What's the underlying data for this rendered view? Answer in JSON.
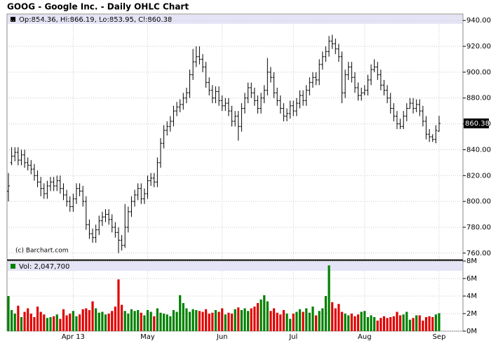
{
  "chart_data": {
    "type": "ohlc",
    "title": "GOOG - Google Inc. - Daily OHLC Chart",
    "credit": "(c) Barchart.com",
    "price_legend": "Op:854.36, Hi:866.19, Lo:853.95, Cl:860.38",
    "volume_legend": "Vol: 2,047,700",
    "categories": [
      null,
      null,
      null,
      null,
      null,
      null,
      null,
      null,
      null,
      null,
      null,
      null,
      null,
      null,
      null,
      null,
      null,
      null,
      null,
      null,
      "Apr 13",
      null,
      null,
      null,
      null,
      null,
      null,
      null,
      null,
      null,
      null,
      null,
      null,
      null,
      null,
      null,
      null,
      null,
      null,
      null,
      null,
      null,
      null,
      "May",
      null,
      null,
      null,
      null,
      null,
      null,
      null,
      null,
      null,
      null,
      null,
      null,
      null,
      null,
      null,
      null,
      null,
      null,
      null,
      null,
      null,
      null,
      "Jun",
      null,
      null,
      null,
      null,
      null,
      null,
      null,
      null,
      null,
      null,
      null,
      null,
      null,
      null,
      null,
      null,
      null,
      null,
      null,
      null,
      null,
      "Jul",
      null,
      null,
      null,
      null,
      null,
      null,
      null,
      null,
      null,
      null,
      null,
      null,
      null,
      null,
      null,
      null,
      null,
      null,
      null,
      null,
      null,
      "Aug",
      null,
      null,
      null,
      null,
      null,
      null,
      null,
      null,
      null,
      null,
      null,
      null,
      null,
      null,
      null,
      null,
      null,
      null,
      null,
      null,
      null,
      null,
      "Sep"
    ],
    "ohlc": [
      [
        808,
        822,
        800,
        812
      ],
      [
        830,
        842,
        828,
        835
      ],
      [
        835,
        842,
        831,
        838
      ],
      [
        838,
        842,
        828,
        832
      ],
      [
        832,
        840,
        828,
        836
      ],
      [
        836,
        840,
        826,
        830
      ],
      [
        830,
        834,
        824,
        828
      ],
      [
        828,
        832,
        821,
        825
      ],
      [
        825,
        829,
        816,
        820
      ],
      [
        820,
        824,
        811,
        815
      ],
      [
        815,
        819,
        804,
        810
      ],
      [
        810,
        814,
        802,
        806
      ],
      [
        806,
        816,
        802,
        812
      ],
      [
        812,
        819,
        808,
        815
      ],
      [
        815,
        819,
        808,
        812
      ],
      [
        812,
        820,
        808,
        816
      ],
      [
        816,
        820,
        806,
        810
      ],
      [
        810,
        814,
        801,
        805
      ],
      [
        805,
        809,
        796,
        800
      ],
      [
        800,
        804,
        792,
        796
      ],
      [
        796,
        806,
        792,
        802
      ],
      [
        802,
        814,
        798,
        810
      ],
      [
        810,
        814,
        804,
        808
      ],
      [
        808,
        812,
        796,
        800
      ],
      [
        800,
        804,
        778,
        782
      ],
      [
        782,
        786,
        771,
        775
      ],
      [
        775,
        779,
        768,
        772
      ],
      [
        772,
        782,
        768,
        778
      ],
      [
        778,
        789,
        774,
        785
      ],
      [
        785,
        792,
        781,
        788
      ],
      [
        788,
        794,
        784,
        790
      ],
      [
        790,
        794,
        782,
        786
      ],
      [
        786,
        790,
        776,
        780
      ],
      [
        780,
        784,
        772,
        776
      ],
      [
        776,
        780,
        760,
        770
      ],
      [
        770,
        774,
        762,
        766
      ],
      [
        766,
        798,
        764,
        780
      ],
      [
        780,
        796,
        776,
        792
      ],
      [
        792,
        804,
        788,
        800
      ],
      [
        800,
        809,
        796,
        805
      ],
      [
        805,
        814,
        801,
        810
      ],
      [
        810,
        814,
        798,
        802
      ],
      [
        802,
        810,
        798,
        806
      ],
      [
        806,
        820,
        802,
        816
      ],
      [
        816,
        822,
        812,
        818
      ],
      [
        818,
        822,
        811,
        815
      ],
      [
        815,
        834,
        811,
        830
      ],
      [
        830,
        849,
        826,
        845
      ],
      [
        845,
        859,
        841,
        855
      ],
      [
        855,
        862,
        851,
        858
      ],
      [
        858,
        866,
        854,
        862
      ],
      [
        862,
        874,
        858,
        870
      ],
      [
        870,
        877,
        866,
        873
      ],
      [
        873,
        879,
        869,
        875
      ],
      [
        875,
        884,
        871,
        880
      ],
      [
        880,
        888,
        876,
        884
      ],
      [
        884,
        902,
        880,
        898
      ],
      [
        898,
        918,
        894,
        908
      ],
      [
        908,
        920,
        904,
        912
      ],
      [
        912,
        920,
        906,
        910
      ],
      [
        910,
        914,
        900,
        904
      ],
      [
        904,
        908,
        888,
        892
      ],
      [
        892,
        896,
        882,
        886
      ],
      [
        886,
        890,
        876,
        880
      ],
      [
        880,
        889,
        876,
        885
      ],
      [
        885,
        889,
        874,
        878
      ],
      [
        878,
        882,
        870,
        874
      ],
      [
        874,
        880,
        870,
        876
      ],
      [
        876,
        880,
        866,
        870
      ],
      [
        870,
        874,
        858,
        862
      ],
      [
        862,
        870,
        858,
        866
      ],
      [
        866,
        870,
        847,
        858
      ],
      [
        858,
        876,
        854,
        872
      ],
      [
        872,
        884,
        868,
        880
      ],
      [
        880,
        892,
        876,
        888
      ],
      [
        888,
        892,
        880,
        884
      ],
      [
        884,
        888,
        874,
        878
      ],
      [
        878,
        882,
        868,
        872
      ],
      [
        872,
        884,
        868,
        880
      ],
      [
        880,
        890,
        876,
        886
      ],
      [
        886,
        911,
        882,
        900
      ],
      [
        900,
        904,
        892,
        896
      ],
      [
        896,
        900,
        880,
        884
      ],
      [
        884,
        888,
        874,
        878
      ],
      [
        878,
        882,
        868,
        872
      ],
      [
        872,
        876,
        862,
        866
      ],
      [
        866,
        872,
        862,
        868
      ],
      [
        868,
        878,
        864,
        874
      ],
      [
        874,
        878,
        866,
        870
      ],
      [
        870,
        880,
        866,
        876
      ],
      [
        876,
        886,
        872,
        882
      ],
      [
        882,
        886,
        874,
        878
      ],
      [
        878,
        890,
        874,
        886
      ],
      [
        886,
        896,
        882,
        892
      ],
      [
        892,
        900,
        888,
        896
      ],
      [
        896,
        900,
        890,
        894
      ],
      [
        894,
        910,
        890,
        906
      ],
      [
        906,
        916,
        902,
        912
      ],
      [
        912,
        920,
        908,
        916
      ],
      [
        916,
        928,
        912,
        924
      ],
      [
        924,
        929,
        918,
        922
      ],
      [
        922,
        926,
        914,
        918
      ],
      [
        918,
        922,
        908,
        912
      ],
      [
        912,
        916,
        876,
        884
      ],
      [
        884,
        902,
        880,
        898
      ],
      [
        898,
        908,
        894,
        904
      ],
      [
        904,
        908,
        892,
        896
      ],
      [
        896,
        900,
        884,
        888
      ],
      [
        888,
        892,
        878,
        882
      ],
      [
        882,
        888,
        878,
        884
      ],
      [
        884,
        890,
        882,
        886
      ],
      [
        886,
        898,
        882,
        894
      ],
      [
        894,
        906,
        890,
        902
      ],
      [
        902,
        910,
        900,
        904
      ],
      [
        904,
        908,
        894,
        898
      ],
      [
        898,
        902,
        886,
        890
      ],
      [
        890,
        894,
        882,
        886
      ],
      [
        886,
        890,
        876,
        880
      ],
      [
        880,
        884,
        868,
        872
      ],
      [
        872,
        876,
        862,
        866
      ],
      [
        866,
        870,
        856,
        860
      ],
      [
        860,
        864,
        856,
        858
      ],
      [
        858,
        870,
        856,
        866
      ],
      [
        866,
        876,
        862,
        872
      ],
      [
        872,
        880,
        872,
        876
      ],
      [
        876,
        880,
        868,
        872
      ],
      [
        872,
        879,
        869,
        875
      ],
      [
        875,
        879,
        866,
        870
      ],
      [
        870,
        874,
        858,
        862
      ],
      [
        862,
        866,
        848,
        852
      ],
      [
        852,
        856,
        846,
        850
      ],
      [
        850,
        852,
        846,
        848
      ],
      [
        848,
        859,
        845,
        855
      ],
      [
        854.36,
        866.19,
        853.95,
        860.38
      ]
    ],
    "volume": [
      4.0,
      2.4,
      2.0,
      2.9,
      1.6,
      2.2,
      2.6,
      2.0,
      1.6,
      2.8,
      2.2,
      1.9,
      1.5,
      1.6,
      1.7,
      1.9,
      1.4,
      2.5,
      1.8,
      2.0,
      2.3,
      1.7,
      1.9,
      2.5,
      2.6,
      2.4,
      3.4,
      2.6,
      2.1,
      2.2,
      1.9,
      2.0,
      2.3,
      2.8,
      5.9,
      3.0,
      2.3,
      2.0,
      2.5,
      2.3,
      2.4,
      2.1,
      1.8,
      2.4,
      2.2,
      1.7,
      2.6,
      2.1,
      2.0,
      1.9,
      1.7,
      2.4,
      2.2,
      4.1,
      3.2,
      2.6,
      2.2,
      2.5,
      2.4,
      2.3,
      2.2,
      2.5,
      2.0,
      2.1,
      2.4,
      2.2,
      2.6,
      1.9,
      2.1,
      2.0,
      2.5,
      2.7,
      2.4,
      2.6,
      2.3,
      2.6,
      2.8,
      3.2,
      3.6,
      4.1,
      3.4,
      2.3,
      2.6,
      2.1,
      1.9,
      2.4,
      2.0,
      1.4,
      2.0,
      2.2,
      2.5,
      2.2,
      2.6,
      2.1,
      2.8,
      1.8,
      2.3,
      2.6,
      4.0,
      7.5,
      3.3,
      2.6,
      3.1,
      2.2,
      2.0,
      1.8,
      2.0,
      1.7,
      1.9,
      2.2,
      2.3,
      1.6,
      1.8,
      1.6,
      1.2,
      1.5,
      1.7,
      1.5,
      1.6,
      1.7,
      2.2,
      1.8,
      1.9,
      2.2,
      1.3,
      1.5,
      1.8,
      1.8,
      1.2,
      1.6,
      1.7,
      1.6,
      1.9,
      2.0477
    ],
    "ylim": [
      755,
      945
    ],
    "yticks": [
      {
        "value": 760,
        "label": "760.00"
      },
      {
        "value": 780,
        "label": "780.00"
      },
      {
        "value": 800,
        "label": "800.00"
      },
      {
        "value": 820,
        "label": "820.00"
      },
      {
        "value": 840,
        "label": "840.00"
      },
      {
        "value": 860,
        "label": "860.00"
      },
      {
        "value": 880,
        "label": "880.00"
      },
      {
        "value": 900,
        "label": "900.00"
      },
      {
        "value": 920,
        "label": "920.00"
      },
      {
        "value": 940,
        "label": "940.00"
      }
    ],
    "y2lim": [
      0,
      8
    ],
    "y2ticks": [
      {
        "value": 0,
        "label": "0M"
      },
      {
        "value": 2,
        "label": "2M"
      },
      {
        "value": 4,
        "label": "4M"
      },
      {
        "value": 6,
        "label": "6M"
      },
      {
        "value": 8,
        "label": "8M"
      }
    ],
    "bar_color": "#000000",
    "up_color": "#008000",
    "down_color": "#e00000",
    "grid": true
  }
}
